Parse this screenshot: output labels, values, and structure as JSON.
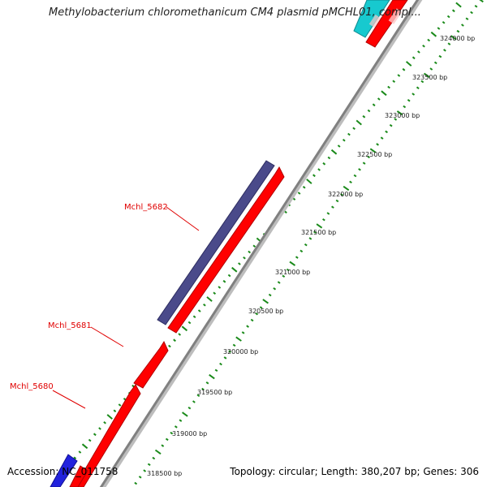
{
  "title": "Methylobacterium chloromethanicum CM4 plasmid pMCHL01, compl...",
  "footer": {
    "accession_label": "Accession:",
    "accession": "NC_011758",
    "summary": "Topology: circular; Length: 380,207 bp; Genes: 306"
  },
  "colors": {
    "forward_cds": "#ff0000",
    "reverse_cds": "#4a4a8a",
    "cyan_feature": "#17c9cf",
    "blue_feature": "#2222dd",
    "backbone": "#909090",
    "tick": "#1a8a1a",
    "gene_label": "#e00000"
  },
  "scale_labels": [
    "318500 bp",
    "319000 bp",
    "319500 bp",
    "320000 bp",
    "320500 bp",
    "321000 bp",
    "321500 bp",
    "322000 bp",
    "322500 bp",
    "323000 bp",
    "323500 bp",
    "324000 bp"
  ],
  "gene_labels": [
    "Mchl_5682",
    "Mchl_5681",
    "Mchl_5680"
  ]
}
